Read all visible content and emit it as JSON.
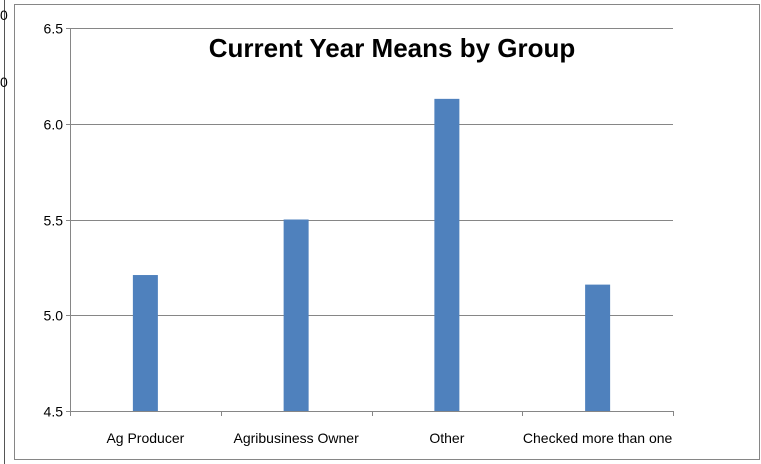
{
  "left_edge_fragments": [
    "0",
    "0"
  ],
  "chart_data": {
    "type": "bar",
    "title": "Current Year Means by Group",
    "xlabel": "",
    "ylabel": "",
    "categories": [
      "Ag Producer",
      "Agribusiness Owner",
      "Other",
      "Checked more than one"
    ],
    "values": [
      5.21,
      5.5,
      6.13,
      5.16
    ],
    "ylim": [
      4.5,
      6.5
    ],
    "yticks": [
      "4.5",
      "5.0",
      "5.5",
      "6.0",
      "6.5"
    ],
    "grid": true,
    "legend": "none",
    "colors": {
      "bar": "#4f81bd",
      "grid": "#868686",
      "axis": "#868686",
      "border": "#868686"
    }
  }
}
